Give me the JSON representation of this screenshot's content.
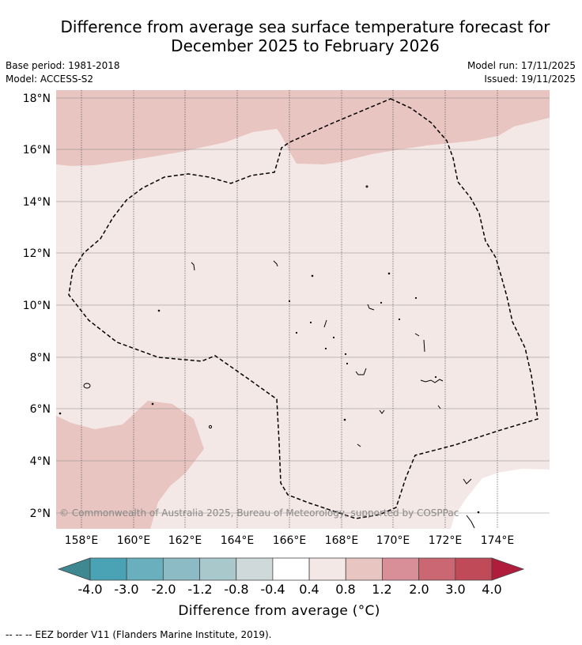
{
  "title_line1": "Difference from average sea surface temperature forecast for",
  "title_line2": "December 2025 to February 2026",
  "meta": {
    "base_period": "Base period: 1981-2018",
    "model": "Model: ACCESS-S2",
    "model_run": "Model run: 17/11/2025",
    "issued": "Issued: 19/11/2025"
  },
  "map": {
    "lat_labels": [
      "18°N",
      "16°N",
      "14°N",
      "12°N",
      "10°N",
      "8°N",
      "6°N",
      "4°N",
      "2°N"
    ],
    "lon_labels": [
      "158°E",
      "160°E",
      "162°E",
      "164°E",
      "166°E",
      "168°E",
      "170°E",
      "172°E",
      "174°E"
    ],
    "copyright": "© Commonwealth of Australia 2025, Bureau of Meteorology, supported by COSPPac"
  },
  "colorbar": {
    "labels": [
      "-4.0",
      "-3.0",
      "-2.0",
      "-1.2",
      "-0.8",
      "-0.4",
      "0.4",
      "0.8",
      "1.2",
      "2.0",
      "3.0",
      "4.0"
    ],
    "colors": [
      "#4aa3b4",
      "#6aafbd",
      "#8cbbc5",
      "#a9c8cb",
      "#cfd9da",
      "#ffffff",
      "#f4e8e6",
      "#e8c5c1",
      "#d98f97",
      "#ca6772",
      "#c04a58"
    ],
    "low_extend_color": "#3f8791",
    "high_extend_color": "#b01d3c",
    "title": "Difference from average (°C)"
  },
  "legend_text": "-- -- -- EEZ border V11 (Flanders Marine Institute, 2019).",
  "colors": {
    "anomaly_0_4_to_0_8": "#f4e8e6",
    "anomaly_0_8_to_1_2": "#e8c5c1",
    "neutral": "#ffffff"
  }
}
